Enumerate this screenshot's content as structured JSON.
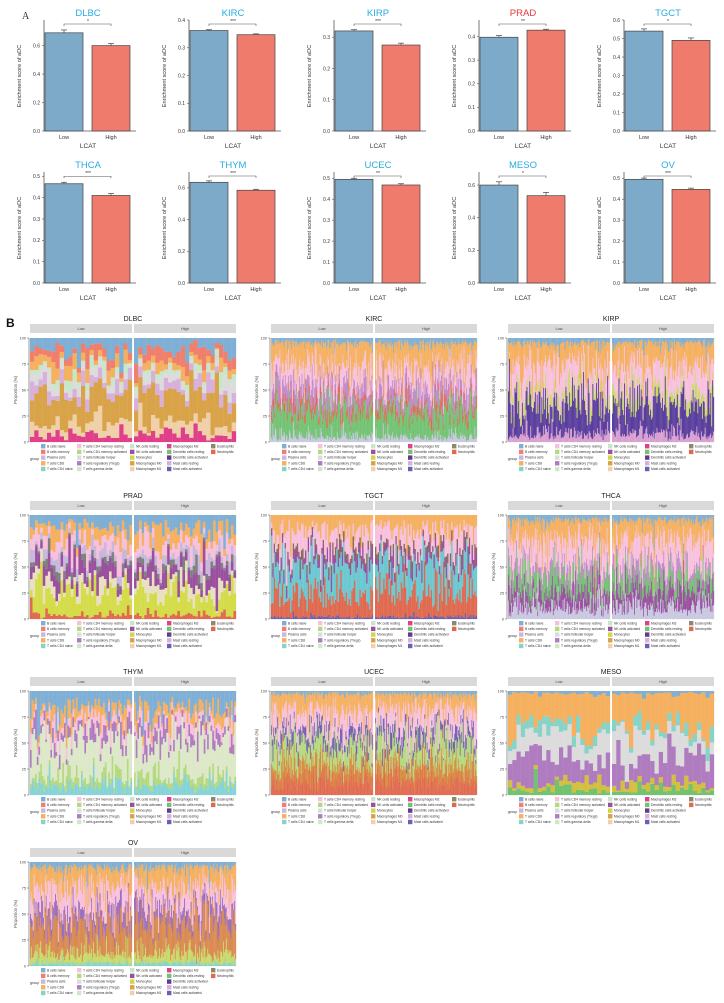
{
  "chart_data": [
    {
      "panel_label": "A",
      "type": "bar",
      "xlabel": "LCAT",
      "ylabel": "Enrichment score of aDC",
      "categories": [
        "Low",
        "High"
      ],
      "bar_colors": [
        "#7eaac9",
        "#ee7b6c"
      ],
      "charts": [
        {
          "title": "DLBC",
          "title_color": "#29abe2",
          "values": [
            0.69,
            0.6
          ],
          "errors": [
            0.02,
            0.015
          ],
          "significance": "*",
          "ylim": [
            0,
            0.78
          ],
          "yticks": [
            "0.0",
            "0.2",
            "0.4",
            "0.6"
          ]
        },
        {
          "title": "KIRC",
          "title_color": "#29abe2",
          "values": [
            0.362,
            0.347
          ],
          "errors": [
            0.003,
            0.003
          ],
          "significance": "***",
          "ylim": [
            0,
            0.4
          ],
          "yticks": [
            "0.0",
            "0.1",
            "0.2",
            "0.3",
            "0.4"
          ]
        },
        {
          "title": "KIRP",
          "title_color": "#29abe2",
          "values": [
            0.32,
            0.275
          ],
          "errors": [
            0.004,
            0.006
          ],
          "significance": "***",
          "ylim": [
            0,
            0.355
          ],
          "yticks": [
            "0.0",
            "0.1",
            "0.2",
            "0.3"
          ]
        },
        {
          "title": "PRAD",
          "title_color": "#e8383d",
          "values": [
            0.397,
            0.427
          ],
          "errors": [
            0.007,
            0.004
          ],
          "significance": "**",
          "ylim": [
            0,
            0.47
          ],
          "yticks": [
            "0.0",
            "0.1",
            "0.2",
            "0.3",
            "0.4"
          ]
        },
        {
          "title": "TGCT",
          "title_color": "#29abe2",
          "values": [
            0.54,
            0.49
          ],
          "errors": [
            0.012,
            0.013
          ],
          "significance": "*",
          "ylim": [
            0,
            0.6
          ],
          "yticks": [
            "0.0",
            "0.1",
            "0.2",
            "0.3",
            "0.4",
            "0.5",
            "0.6"
          ]
        },
        {
          "title": "THCA",
          "title_color": "#29abe2",
          "values": [
            0.465,
            0.41
          ],
          "errors": [
            0.007,
            0.009
          ],
          "significance": "***",
          "ylim": [
            0,
            0.52
          ],
          "yticks": [
            "0.0",
            "0.1",
            "0.2",
            "0.3",
            "0.4",
            "0.5"
          ]
        },
        {
          "title": "THYM",
          "title_color": "#29abe2",
          "values": [
            0.635,
            0.585
          ],
          "errors": [
            0.009,
            0.006
          ],
          "significance": "***",
          "ylim": [
            0,
            0.7
          ],
          "yticks": [
            "0.0",
            "0.2",
            "0.4",
            "0.6"
          ]
        },
        {
          "title": "UCEC",
          "title_color": "#29abe2",
          "values": [
            0.495,
            0.468
          ],
          "errors": [
            0.005,
            0.006
          ],
          "significance": "**",
          "ylim": [
            0,
            0.53
          ],
          "yticks": [
            "0.0",
            "0.1",
            "0.2",
            "0.3",
            "0.4",
            "0.5"
          ]
        },
        {
          "title": "MESO",
          "title_color": "#29abe2",
          "values": [
            0.6,
            0.535
          ],
          "errors": [
            0.02,
            0.02
          ],
          "significance": "*",
          "ylim": [
            0,
            0.68
          ],
          "yticks": [
            "0.0",
            "0.2",
            "0.4",
            "0.6"
          ]
        },
        {
          "title": "OV",
          "title_color": "#29abe2",
          "values": [
            0.495,
            0.447
          ],
          "errors": [
            0.006,
            0.006
          ],
          "significance": "***",
          "ylim": [
            0,
            0.53
          ],
          "yticks": [
            "0.0",
            "0.1",
            "0.2",
            "0.3",
            "0.4",
            "0.5"
          ]
        }
      ]
    },
    {
      "panel_label": "B",
      "type": "bar",
      "stacked": true,
      "ylabel": "Proportion (%)",
      "yticks": [
        "0",
        "25",
        "50",
        "75",
        "100"
      ],
      "ylim": [
        0,
        100
      ],
      "groups": [
        "Low",
        "High"
      ],
      "legend_title": "group",
      "legend_placement": "bottom",
      "cell_types": [
        {
          "name": "B cells naive",
          "color": "#7fafd4"
        },
        {
          "name": "B cells memory",
          "color": "#f07f6e"
        },
        {
          "name": "Plasma cells",
          "color": "#c7b8dc"
        },
        {
          "name": "T cells CD8",
          "color": "#f5b060"
        },
        {
          "name": "T cells CD4 naive",
          "color": "#86d3c8"
        },
        {
          "name": "T cells CD4 memory resting",
          "color": "#f7c1dd"
        },
        {
          "name": "T cells CD4 memory activated",
          "color": "#b5d97f"
        },
        {
          "name": "T cells follicular helper",
          "color": "#dcdcdc"
        },
        {
          "name": "T cells regulatory (Tregs)",
          "color": "#b07cc0"
        },
        {
          "name": "T cells gamma delta",
          "color": "#cdeac6"
        },
        {
          "name": "NK cells resting",
          "color": "#c8e6c9"
        },
        {
          "name": "NK cells activated",
          "color": "#9b4f9f"
        },
        {
          "name": "Monocytes",
          "color": "#d4d44a"
        },
        {
          "name": "Macrophages M0",
          "color": "#d9a34a"
        },
        {
          "name": "Macrophages M1",
          "color": "#f0d0a8"
        },
        {
          "name": "Macrophages M2",
          "color": "#e0408a"
        },
        {
          "name": "Dendritic cells resting",
          "color": "#72c272"
        },
        {
          "name": "Dendritic cells activated",
          "color": "#5e3d8f"
        },
        {
          "name": "Mast cells resting",
          "color": "#d8b0dc"
        },
        {
          "name": "Mast cells activated",
          "color": "#6a5fb0"
        },
        {
          "name": "Eosinophils",
          "color": "#8a8a70"
        },
        {
          "name": "Neutrophils",
          "color": "#e06a50"
        }
      ],
      "panels": [
        {
          "title": "DLBC",
          "composition": [
            [
              "#e0408a",
              7
            ],
            [
              "#f0d0a8",
              10
            ],
            [
              "#d9a34a",
              30
            ],
            [
              "#d8b0dc",
              10
            ],
            [
              "#dcdcdc",
              7
            ],
            [
              "#c8e6c9",
              5
            ],
            [
              "#f5b060",
              8
            ],
            [
              "#f07f6e",
              11
            ],
            [
              "#7fafd4",
              12
            ]
          ]
        },
        {
          "title": "KIRC",
          "composition": [
            [
              "#c8c8e0",
              5
            ],
            [
              "#72c272",
              25
            ],
            [
              "#e06a50",
              8
            ],
            [
              "#c08ac8",
              15
            ],
            [
              "#f7c1dd",
              20
            ],
            [
              "#f5b060",
              22
            ],
            [
              "#7fafd4",
              5
            ]
          ]
        },
        {
          "title": "KIRP",
          "composition": [
            [
              "#d8a0d0",
              8
            ],
            [
              "#5a3f9e",
              30
            ],
            [
              "#c9d96a",
              10
            ],
            [
              "#f7c1dd",
              25
            ],
            [
              "#f5b060",
              22
            ],
            [
              "#7fafd4",
              5
            ]
          ]
        },
        {
          "title": "PRAD",
          "composition": [
            [
              "#e06a50",
              4
            ],
            [
              "#d4dc4a",
              22
            ],
            [
              "#e8e0c0",
              10
            ],
            [
              "#9b4f9f",
              15
            ],
            [
              "#808080",
              5
            ],
            [
              "#c8b8dc",
              8
            ],
            [
              "#f7c1dd",
              12
            ],
            [
              "#f5b060",
              12
            ],
            [
              "#7fafd4",
              12
            ]
          ]
        },
        {
          "title": "TGCT",
          "composition": [
            [
              "#6a5fb0",
              2
            ],
            [
              "#e06a50",
              25
            ],
            [
              "#6cc8d0",
              25
            ],
            [
              "#9b4f9f",
              8
            ],
            [
              "#8a6a5a",
              5
            ],
            [
              "#f7c1dd",
              20
            ],
            [
              "#f5b060",
              15
            ]
          ]
        },
        {
          "title": "THCA",
          "composition": [
            [
              "#c8c8e0",
              12
            ],
            [
              "#9b4f9f",
              15
            ],
            [
              "#72c272",
              15
            ],
            [
              "#c08ac8",
              8
            ],
            [
              "#f7c1dd",
              25
            ],
            [
              "#f5b060",
              20
            ],
            [
              "#7fafd4",
              5
            ]
          ]
        },
        {
          "title": "THYM",
          "composition": [
            [
              "#86d3d8",
              10
            ],
            [
              "#b5d97f",
              8
            ],
            [
              "#dde8c8",
              35
            ],
            [
              "#b07cc0",
              10
            ],
            [
              "#f7c1dd",
              10
            ],
            [
              "#f5b060",
              10
            ],
            [
              "#7fafd4",
              17
            ]
          ]
        },
        {
          "title": "UCEC",
          "composition": [
            [
              "#e06a50",
              15
            ],
            [
              "#d98a40",
              15
            ],
            [
              "#b5d97f",
              20
            ],
            [
              "#7060b0",
              10
            ],
            [
              "#f7c1dd",
              20
            ],
            [
              "#f5b060",
              17
            ],
            [
              "#7fafd4",
              3
            ]
          ]
        },
        {
          "title": "MESO",
          "composition": [
            [
              "#72c272",
              5
            ],
            [
              "#d4c040",
              5
            ],
            [
              "#b07cc0",
              25
            ],
            [
              "#dcdcdc",
              20
            ],
            [
              "#86d3c8",
              8
            ],
            [
              "#f5b060",
              35
            ],
            [
              "#7fafd4",
              2
            ]
          ]
        },
        {
          "title": "OV",
          "composition": [
            [
              "#86d3c8",
              3
            ],
            [
              "#c9d96a",
              10
            ],
            [
              "#d98a50",
              30
            ],
            [
              "#9b6fc0",
              12
            ],
            [
              "#f7c1dd",
              20
            ],
            [
              "#f5b060",
              20
            ],
            [
              "#7fafd4",
              5
            ]
          ]
        }
      ]
    }
  ]
}
